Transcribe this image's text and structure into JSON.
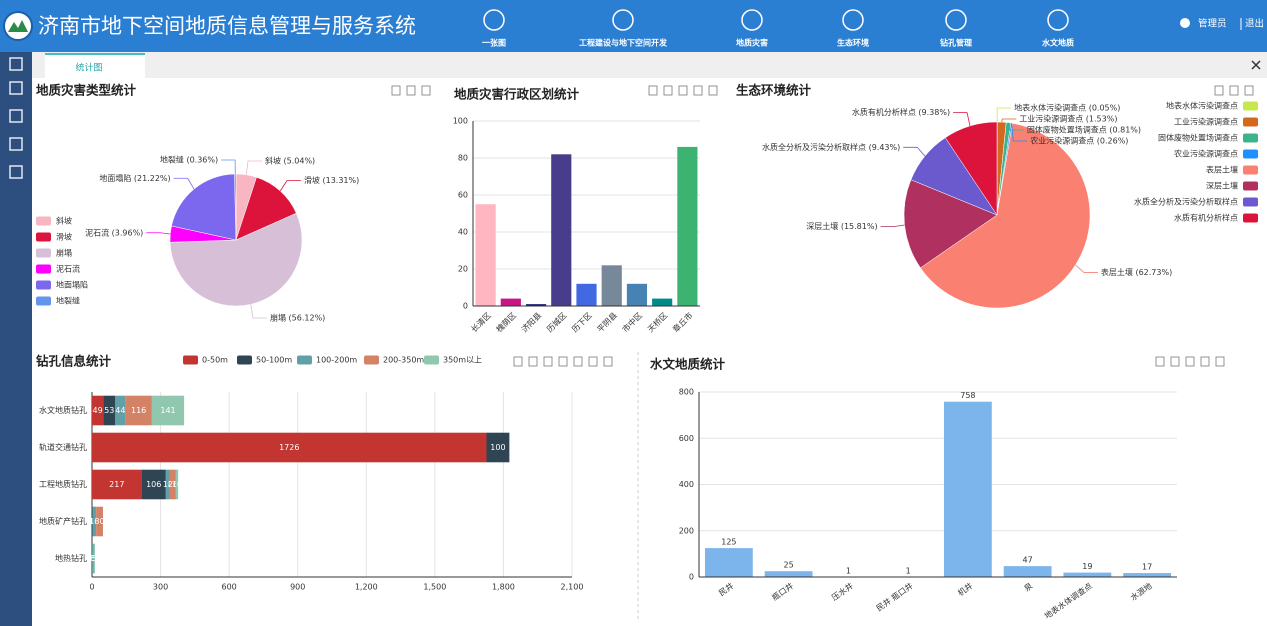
{
  "header": {
    "title": "济南市地下空间地质信息管理与服务系统",
    "nav": [
      "一张图",
      "工程建设与地下空间开发",
      "地质灾害",
      "生态环境",
      "钻孔管理",
      "水文地质"
    ],
    "user": "管理员",
    "logout": "退出"
  },
  "tabs": [
    "统计图"
  ],
  "chart_data": [
    {
      "type": "pie",
      "title": "地质灾害类型统计",
      "categories": [
        "斜坡",
        "滑坡",
        "崩塌",
        "泥石流",
        "地面塌陷",
        "地裂缝"
      ],
      "values": [
        5.04,
        13.31,
        56.12,
        3.96,
        21.22,
        0.36
      ],
      "value_labels": [
        "斜坡 (5.04%)",
        "滑坡 (13.31%)",
        "崩塌 (56.12%)",
        "泥石流 (3.96%)",
        "地面塌陷 (21.22%)",
        "地裂缝 (0.36%)"
      ],
      "colors": [
        "#f7b6c2",
        "#dc143c",
        "#d8bfd8",
        "#ff00ff",
        "#7b68ee",
        "#6495ed"
      ],
      "legend": "left"
    },
    {
      "type": "bar",
      "title": "地质灾害行政区划统计",
      "categories": [
        "长清区",
        "槐荫区",
        "济阳县",
        "历城区",
        "历下区",
        "平阴县",
        "市中区",
        "天桥区",
        "章丘市"
      ],
      "values": [
        55,
        4,
        1,
        82,
        12,
        22,
        12,
        4,
        86
      ],
      "colors": [
        "#ffb6c1",
        "#c71585",
        "#191970",
        "#483d8b",
        "#4169e1",
        "#778899",
        "#4682b4",
        "#008b8b",
        "#3cb371"
      ],
      "ylim": [
        0,
        100
      ],
      "yticks": [
        0,
        20,
        40,
        60,
        80,
        100
      ],
      "grid": true
    },
    {
      "type": "pie",
      "title": "生态环境统计",
      "categories": [
        "地表水体污染调查点",
        "工业污染源调查点",
        "固体废物处置场调查点",
        "农业污染源调查点",
        "表层土壤",
        "深层土壤",
        "水质全分析及污染分析取样点",
        "水质有机分析样点"
      ],
      "values": [
        0.05,
        1.53,
        0.81,
        0.26,
        62.73,
        15.81,
        9.43,
        9.38
      ],
      "value_labels": [
        "地表水体污染调查点 (0.05%)",
        "工业污染源调查点 (1.53%)",
        "固体废物处置场调查点 (0.81%)",
        "农业污染源调查点 (0.26%)",
        "表层土壤 (62.73%)",
        "深层土壤 (15.81%)",
        "水质全分析及污染分析取样点 (9.43%)",
        "水质有机分析样点 (9.38%)"
      ],
      "colors": [
        "#c6e84c",
        "#d2691e",
        "#3cb38a",
        "#1e90ff",
        "#fa8072",
        "#b03060",
        "#6a5acd",
        "#dc143c"
      ],
      "legend": "right"
    },
    {
      "type": "bar",
      "orientation": "horizontal",
      "stacked": true,
      "data_labels": true,
      "title": "钻孔信息统计",
      "categories": [
        "水文地质钻孔",
        "轨道交通钻孔",
        "工程地质钻孔",
        "地质矿产钻孔",
        "地热钻孔"
      ],
      "series": [
        {
          "name": "0-50m",
          "color": "#c23531",
          "values": [
            49,
            1726,
            217,
            0,
            0
          ]
        },
        {
          "name": "50-100m",
          "color": "#2f4554",
          "values": [
            53,
            100,
            106,
            2,
            0
          ]
        },
        {
          "name": "100-200m",
          "color": "#61a0a8",
          "values": [
            44,
            0,
            18,
            16,
            8
          ]
        },
        {
          "name": "200-350m",
          "color": "#d48265",
          "values": [
            116,
            0,
            26,
            30,
            0
          ]
        },
        {
          "name": "350m以上",
          "color": "#91c7ae",
          "values": [
            141,
            0,
            10,
            0,
            5
          ]
        }
      ],
      "xlim": [
        0,
        2100
      ],
      "xticks": [
        0,
        300,
        600,
        900,
        {
          "value": 1200,
          "label": "1,200"
        },
        {
          "value": 1500,
          "label": "1,500"
        },
        {
          "value": 1800,
          "label": "1,800"
        },
        {
          "value": 2100,
          "label": "2,100"
        }
      ],
      "grid": true,
      "legend": "top"
    },
    {
      "type": "bar",
      "title": "水文地质统计",
      "categories": [
        "民井",
        "瓶口井",
        "压水井",
        "民井 瓶口井",
        "机井",
        "泉",
        "地表水体调查点",
        "水源地"
      ],
      "values": [
        125,
        25,
        1,
        1,
        758,
        47,
        19,
        17
      ],
      "color": "#7cb5ec",
      "data_labels": true,
      "ylim": [
        0,
        800
      ],
      "yticks": [
        0,
        200,
        400,
        600,
        800
      ],
      "grid": true
    }
  ]
}
